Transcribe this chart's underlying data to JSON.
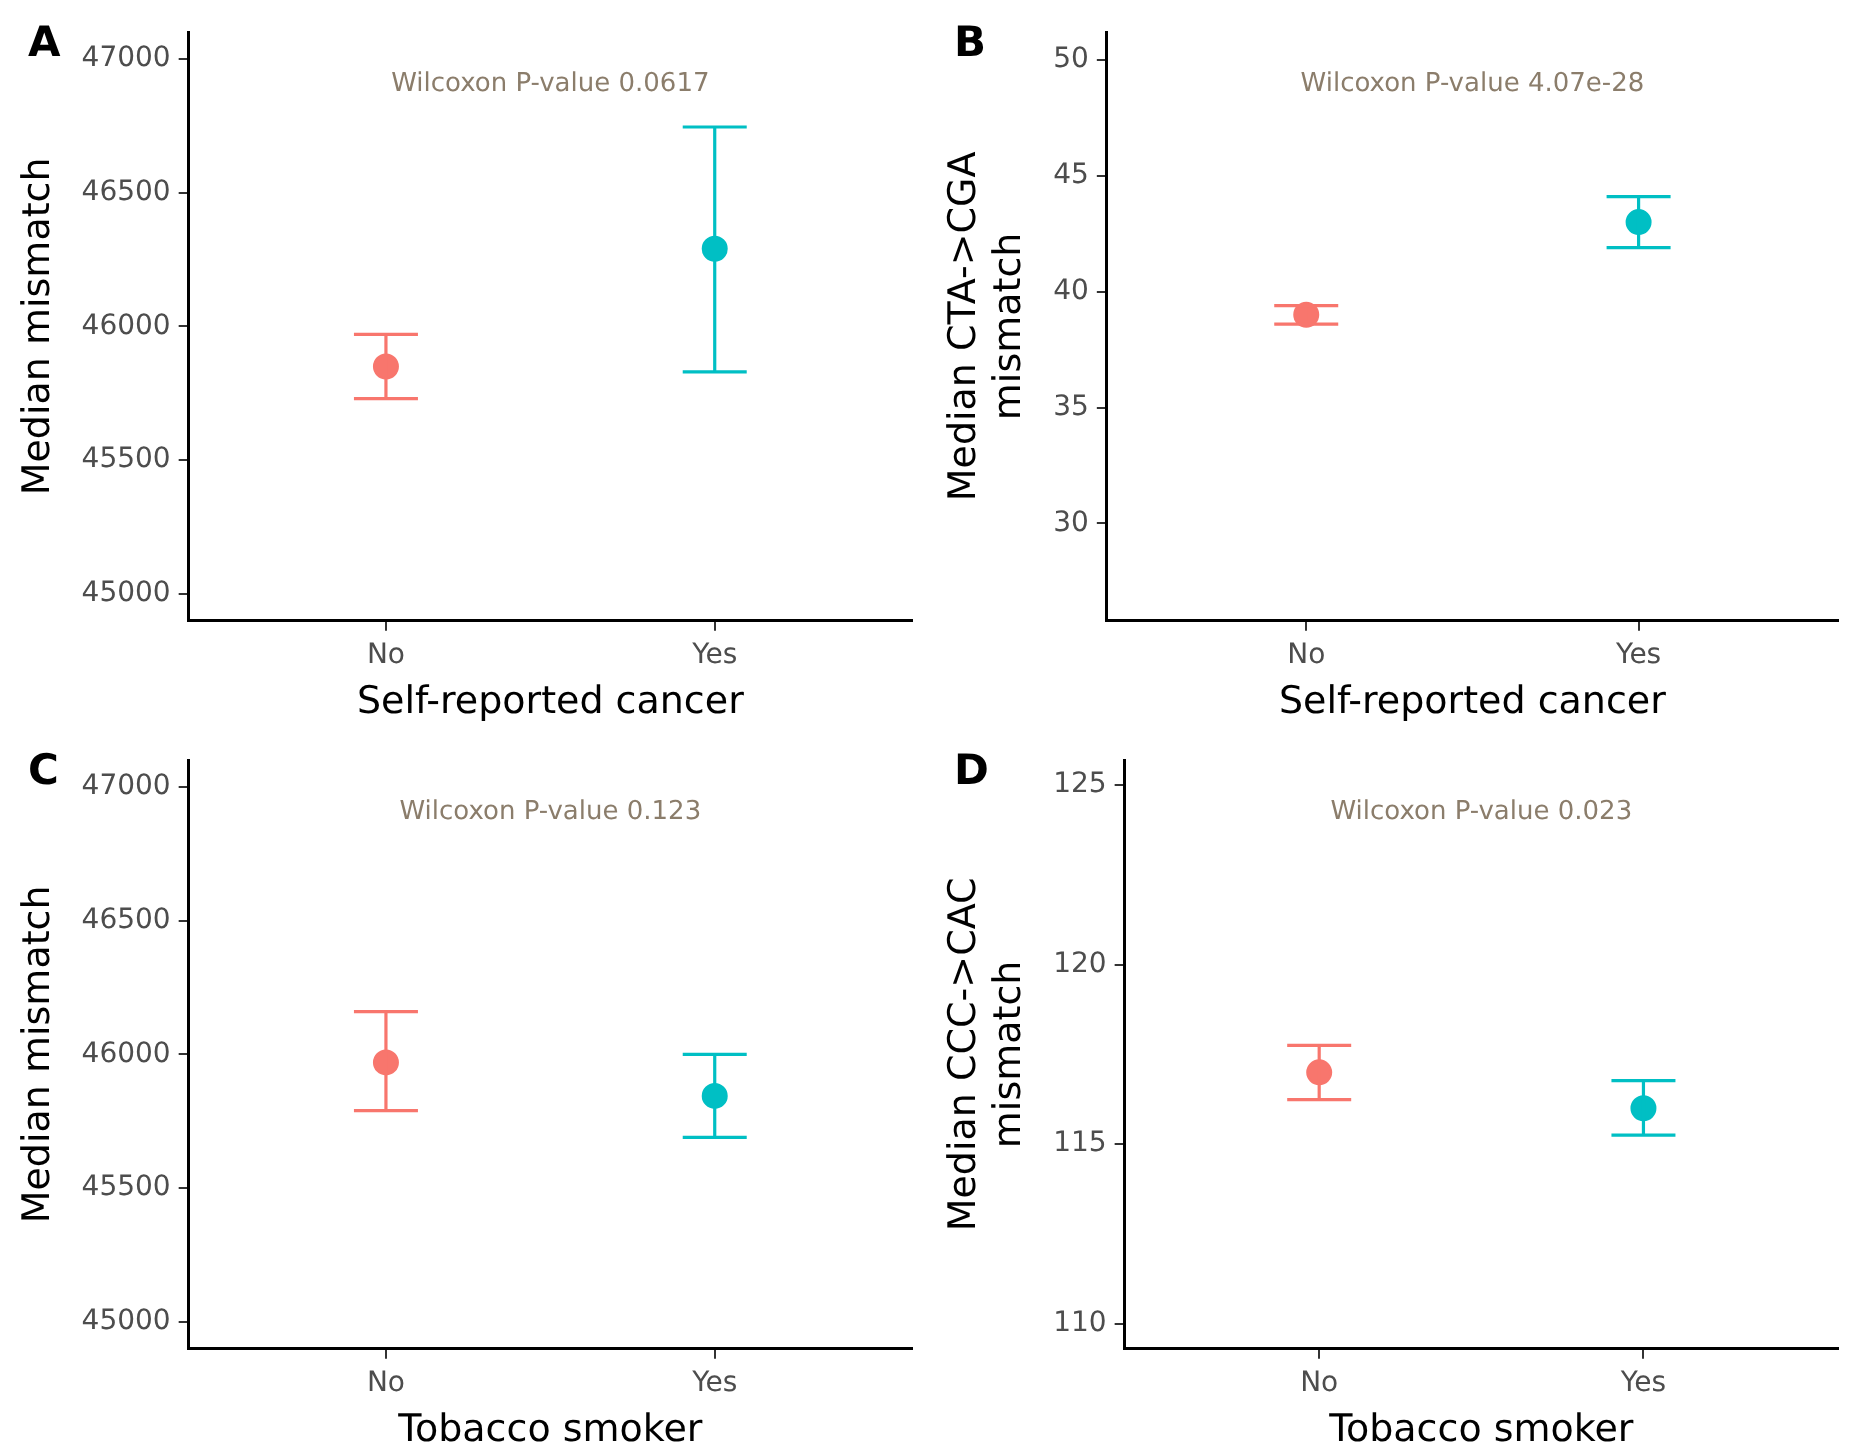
{
  "chart_data": [
    {
      "type": "scatter",
      "title": "A",
      "xlabel": "Self-reported cancer",
      "ylabel": "Median mismatch",
      "categories": [
        "No",
        "Yes"
      ],
      "values": [
        45850,
        46290
      ],
      "errors": [
        [
          45730,
          45970
        ],
        [
          45830,
          46745
        ]
      ],
      "colors": [
        "#f8766d",
        "#00bfc4"
      ],
      "ylim": [
        44900,
        47100
      ],
      "yticks": [
        45000,
        45500,
        46000,
        46500,
        47000
      ],
      "marker": "circle",
      "legend": false,
      "grid": false,
      "annotations": [
        "Wilcoxon P-value 0.0617"
      ]
    },
    {
      "type": "scatter",
      "title": "B",
      "xlabel": "Self-reported cancer",
      "ylabel": "Median CTA->CGA mismatch",
      "categories": [
        "No",
        "Yes"
      ],
      "values": [
        39.0,
        43.0
      ],
      "errors": [
        [
          38.6,
          39.4
        ],
        [
          41.9,
          44.1
        ]
      ],
      "colors": [
        "#f8766d",
        "#00bfc4"
      ],
      "ylim": [
        25.8,
        51.2
      ],
      "yticks": [
        30,
        35,
        40,
        45,
        50
      ],
      "marker": "circle",
      "legend": false,
      "grid": false,
      "annotations": [
        "Wilcoxon P-value 4.07e-28"
      ]
    },
    {
      "type": "scatter",
      "title": "C",
      "xlabel": "Tobacco smoker",
      "ylabel": "Median mismatch",
      "categories": [
        "No",
        "Yes"
      ],
      "values": [
        45970,
        45845
      ],
      "errors": [
        [
          45790,
          46160
        ],
        [
          45690,
          46000
        ]
      ],
      "colors": [
        "#f8766d",
        "#00bfc4"
      ],
      "ylim": [
        44900,
        47100
      ],
      "yticks": [
        45000,
        45500,
        46000,
        46500,
        47000
      ],
      "marker": "circle",
      "legend": false,
      "grid": false,
      "annotations": [
        "Wilcoxon P-value 0.123"
      ]
    },
    {
      "type": "scatter",
      "title": "D",
      "xlabel": "Tobacco smoker",
      "ylabel": "Median CCC->CAC mismatch",
      "categories": [
        "No",
        "Yes"
      ],
      "values": [
        117.0,
        116.0
      ],
      "errors": [
        [
          116.24,
          117.75
        ],
        [
          115.25,
          116.77
        ]
      ],
      "colors": [
        "#f8766d",
        "#00bfc4"
      ],
      "ylim": [
        109.3,
        125.7
      ],
      "yticks": [
        110,
        115,
        120,
        125
      ],
      "marker": "circle",
      "legend": false,
      "grid": false,
      "annotations": [
        "Wilcoxon P-value 0.023"
      ]
    }
  ]
}
